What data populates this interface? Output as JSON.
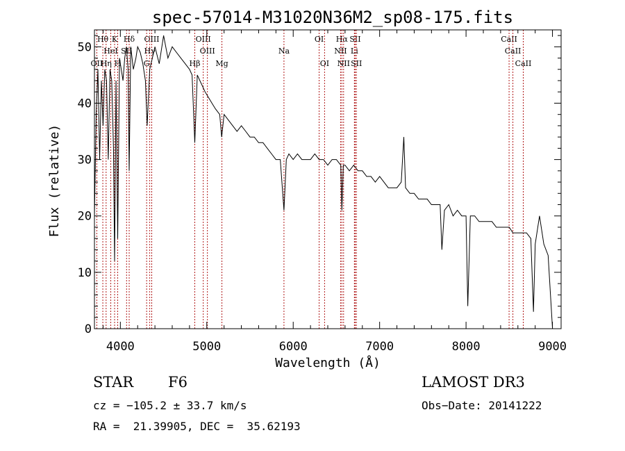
{
  "chart_data": {
    "type": "line",
    "title": "spec-57014-M31020N36M2_sp08-175.fits",
    "xlabel": "Wavelength (Å)",
    "ylabel": "Flux (relative)",
    "xlim": [
      3700,
      9100
    ],
    "ylim": [
      0,
      53
    ],
    "xticks": [
      4000,
      5000,
      6000,
      7000,
      8000,
      9000
    ],
    "yticks": [
      0,
      10,
      20,
      30,
      40,
      50
    ],
    "spectrum": {
      "x": [
        3700,
        3720,
        3740,
        3760,
        3780,
        3800,
        3820,
        3840,
        3860,
        3880,
        3900,
        3920,
        3933,
        3950,
        3969,
        3990,
        4010,
        4030,
        4050,
        4070,
        4090,
        4102,
        4120,
        4150,
        4180,
        4200,
        4230,
        4260,
        4290,
        4310,
        4340,
        4370,
        4400,
        4450,
        4500,
        4550,
        4600,
        4650,
        4700,
        4750,
        4800,
        4830,
        4861,
        4890,
        4920,
        4950,
        4980,
        5020,
        5060,
        5100,
        5150,
        5172,
        5200,
        5250,
        5300,
        5350,
        5400,
        5450,
        5500,
        5550,
        5600,
        5650,
        5700,
        5750,
        5800,
        5850,
        5893,
        5920,
        5950,
        6000,
        6050,
        6100,
        6150,
        6200,
        6250,
        6300,
        6350,
        6400,
        6450,
        6500,
        6550,
        6563,
        6580,
        6600,
        6650,
        6700,
        6750,
        6800,
        6850,
        6900,
        6950,
        7000,
        7050,
        7100,
        7150,
        7200,
        7250,
        7280,
        7300,
        7350,
        7400,
        7450,
        7500,
        7550,
        7600,
        7650,
        7700,
        7720,
        7750,
        7800,
        7850,
        7900,
        7950,
        8000,
        8020,
        8050,
        8100,
        8150,
        8200,
        8250,
        8300,
        8350,
        8400,
        8450,
        8500,
        8542,
        8560,
        8600,
        8650,
        8700,
        8750,
        8780,
        8800,
        8850,
        8900,
        8950,
        9000
      ],
      "y": [
        20,
        38,
        46,
        30,
        44,
        36,
        46,
        44,
        30,
        46,
        44,
        32,
        12,
        44,
        16,
        48,
        46,
        44,
        48,
        50,
        46,
        28,
        50,
        46,
        48,
        50,
        49,
        47,
        44,
        36,
        46,
        48,
        50,
        47,
        52,
        48,
        50,
        49,
        48,
        47,
        46,
        45,
        33,
        45,
        44,
        43,
        42,
        41,
        40,
        39,
        38,
        34,
        38,
        37,
        36,
        35,
        36,
        35,
        34,
        34,
        33,
        33,
        32,
        31,
        30,
        30,
        21,
        30,
        31,
        30,
        31,
        30,
        30,
        30,
        31,
        30,
        30,
        29,
        30,
        30,
        29,
        21,
        29,
        29,
        28,
        29,
        28,
        28,
        27,
        27,
        26,
        27,
        26,
        25,
        25,
        25,
        26,
        34,
        25,
        24,
        24,
        23,
        23,
        23,
        22,
        22,
        22,
        14,
        21,
        22,
        20,
        21,
        20,
        20,
        4,
        20,
        20,
        19,
        19,
        19,
        19,
        18,
        18,
        18,
        18,
        17,
        17,
        17,
        17,
        17,
        16,
        3,
        15,
        20,
        15,
        13,
        0
      ]
    },
    "line_markers": [
      {
        "label": "Hθ",
        "x": 3797,
        "row": 0
      },
      {
        "label": "K",
        "x": 3933,
        "row": 0
      },
      {
        "label": "Hδ",
        "x": 4102,
        "row": 0
      },
      {
        "label": "OIII",
        "x": 4363,
        "row": 0
      },
      {
        "label": "OIII",
        "x": 4959,
        "row": 0
      },
      {
        "label": "OI",
        "x": 6300,
        "row": 0
      },
      {
        "label": "Hα",
        "x": 6563,
        "row": 0
      },
      {
        "label": "SII",
        "x": 6717,
        "row": 0
      },
      {
        "label": "CaII",
        "x": 8498,
        "row": 0
      },
      {
        "label": "HeI",
        "x": 3889,
        "row": 1
      },
      {
        "label": "SII",
        "x": 4072,
        "row": 1
      },
      {
        "label": "Hγ",
        "x": 4340,
        "row": 1
      },
      {
        "label": "OIII",
        "x": 5007,
        "row": 1
      },
      {
        "label": "Na",
        "x": 5893,
        "row": 1
      },
      {
        "label": "NII",
        "x": 6548,
        "row": 1
      },
      {
        "label": "Li",
        "x": 6708,
        "row": 1
      },
      {
        "label": "CaII",
        "x": 8542,
        "row": 1
      },
      {
        "label": "OII",
        "x": 3727,
        "row": 2
      },
      {
        "label": "Hη",
        "x": 3835,
        "row": 2
      },
      {
        "label": "H",
        "x": 3969,
        "row": 2
      },
      {
        "label": "G",
        "x": 4304,
        "row": 2
      },
      {
        "label": "Hβ",
        "x": 4861,
        "row": 2
      },
      {
        "label": "Mg",
        "x": 5175,
        "row": 2
      },
      {
        "label": "OI",
        "x": 6363,
        "row": 2
      },
      {
        "label": "NII",
        "x": 6583,
        "row": 2
      },
      {
        "label": "SII",
        "x": 6731,
        "row": 2
      },
      {
        "label": "CaII",
        "x": 8662,
        "row": 2
      }
    ]
  },
  "info": {
    "object_type": "STAR",
    "subclass": "F6",
    "survey": "LAMOST DR3",
    "cz": "cz = −105.2 ± 33.7 km/s",
    "obs_date": "Obs−Date: 20141222",
    "coords": "RA =  21.39905, DEC =  35.62193"
  },
  "colors": {
    "marker_line": "#b01818",
    "spectrum": "#000000"
  }
}
